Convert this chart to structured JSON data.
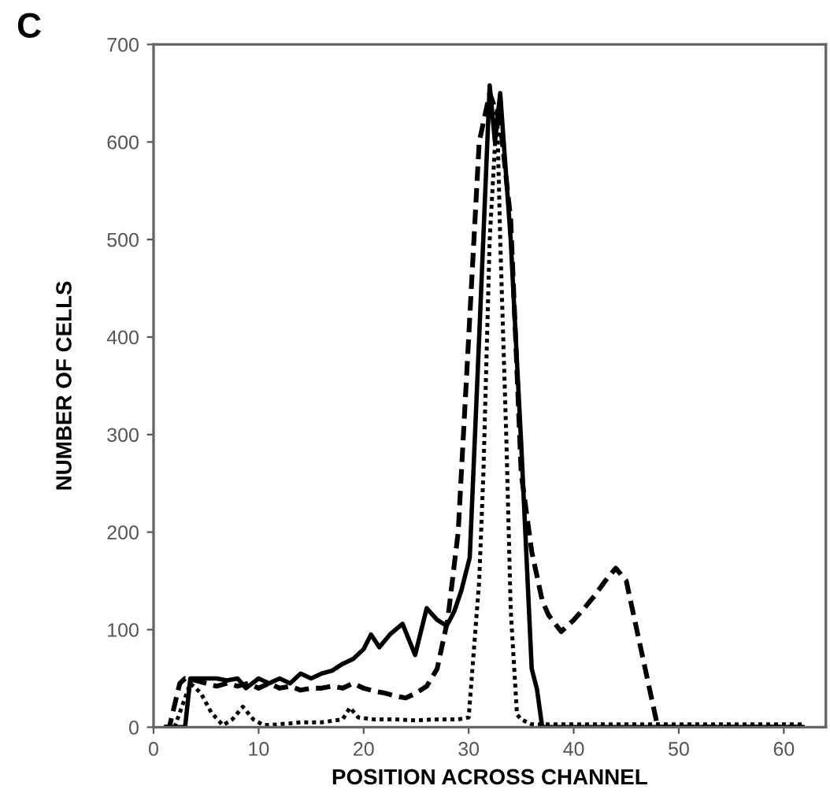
{
  "chart_data": {
    "type": "line",
    "xlabel": "POSITION ACROSS CHANNEL",
    "ylabel": "NUMBER OF CELLS",
    "annotations": [
      "C"
    ],
    "xlim": [
      0,
      64
    ],
    "ylim": [
      0,
      700
    ],
    "xticks": [
      0,
      10,
      20,
      30,
      40,
      50,
      60
    ],
    "yticks": [
      0,
      100,
      200,
      300,
      400,
      500,
      600,
      700
    ],
    "grid": false,
    "series": [
      {
        "color": "#000000",
        "line_style": "solid",
        "x": [
          1,
          2,
          3,
          3.5,
          5,
          6,
          7,
          8,
          8.8,
          10,
          11,
          12,
          13,
          14,
          15,
          16,
          17,
          18,
          19,
          20,
          20.7,
          21.5,
          22.5,
          23.7,
          24.9,
          26,
          27,
          27.9,
          28.6,
          29.3,
          30.1,
          31,
          32,
          32.5,
          33,
          34,
          35,
          36,
          36.5,
          37,
          40,
          45,
          50,
          55,
          60,
          62
        ],
        "values": [
          0,
          0,
          0,
          50,
          50,
          50,
          48,
          50,
          40,
          50,
          45,
          50,
          45,
          55,
          50,
          55,
          58,
          65,
          70,
          80,
          95,
          82,
          95,
          106,
          74,
          122,
          110,
          104,
          118,
          140,
          174,
          400,
          658,
          600,
          650,
          500,
          290,
          60,
          39,
          0,
          0,
          0,
          0,
          0,
          0,
          0
        ]
      },
      {
        "color": "#000000",
        "line_style": "dashed",
        "x": [
          1,
          1.5,
          2.5,
          3,
          4,
          5,
          6,
          7,
          8,
          9,
          10,
          11,
          12,
          13,
          14,
          15,
          16,
          17,
          18,
          19,
          20,
          21,
          22,
          23,
          24,
          25,
          26,
          27,
          28,
          29,
          30,
          31,
          32,
          33,
          34,
          35,
          36,
          37,
          37.6,
          38.8,
          40,
          41,
          42,
          43,
          44,
          45,
          46,
          47,
          47.8,
          48,
          50,
          55,
          60,
          62
        ],
        "values": [
          0,
          0,
          45,
          50,
          48,
          45,
          42,
          45,
          42,
          45,
          40,
          45,
          40,
          42,
          38,
          40,
          40,
          42,
          40,
          45,
          40,
          37,
          35,
          32,
          30,
          35,
          42,
          60,
          110,
          200,
          400,
          600,
          650,
          620,
          520,
          260,
          180,
          130,
          115,
          98,
          110,
          122,
          135,
          150,
          163,
          150,
          100,
          50,
          10,
          0,
          0,
          0,
          0,
          0
        ]
      },
      {
        "color": "#000000",
        "line_style": "dotted",
        "x": [
          2,
          3,
          3.5,
          4.5,
          5.5,
          6.6,
          7.5,
          8.5,
          9.5,
          10.5,
          12,
          14,
          16,
          18,
          18.7,
          19.5,
          21,
          23,
          25,
          27,
          29,
          30,
          31,
          31.4,
          32,
          32.7,
          33,
          33.6,
          34,
          34.6,
          35,
          36,
          40,
          45,
          50,
          55,
          60,
          62
        ],
        "values": [
          0,
          30,
          45,
          35,
          15,
          2,
          8,
          21,
          8,
          2,
          3,
          5,
          5,
          8,
          20,
          10,
          8,
          8,
          7,
          8,
          8,
          10,
          150,
          260,
          500,
          635,
          500,
          290,
          120,
          13,
          8,
          3,
          3,
          3,
          3,
          3,
          3,
          3
        ]
      }
    ]
  }
}
